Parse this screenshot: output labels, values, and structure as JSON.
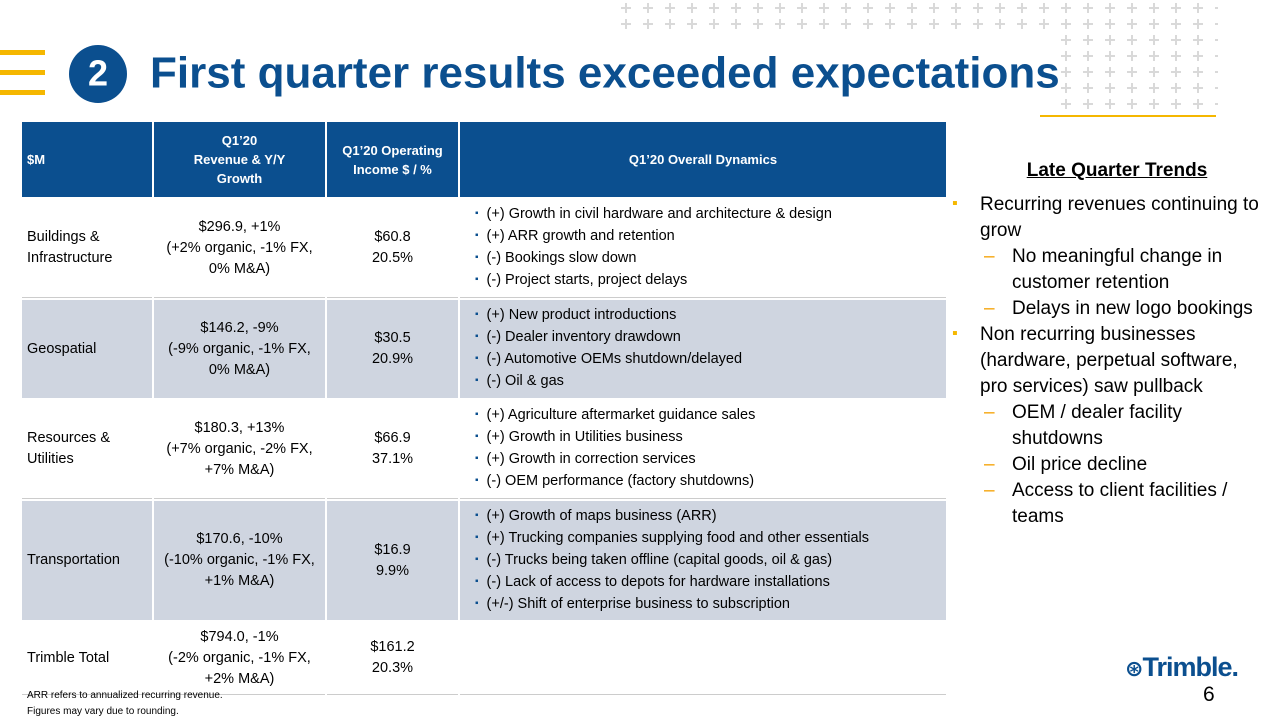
{
  "header": {
    "number": "2",
    "title": "First quarter results exceeded expectations"
  },
  "table": {
    "columns": [
      "$M",
      "Q1’20\nRevenue & Y/Y\nGrowth",
      "Q1’20 Operating\nIncome $ / %",
      "Q1’20  Overall  Dynamics"
    ],
    "rows": [
      {
        "segment": "Buildings &\nInfrastructure",
        "revenue": "$296.9, +1%\n(+2% organic, -1% FX,\n0% M&A)",
        "income": "$60.8\n20.5%",
        "dynamics": [
          "(+) Growth in civil hardware and architecture & design",
          "(+) ARR growth and retention",
          "(-) Bookings slow down",
          "(-) Project starts, project delays"
        ]
      },
      {
        "segment": "Geospatial",
        "revenue": "$146.2, -9%\n(-9% organic, -1% FX,\n0% M&A)",
        "income": "$30.5\n20.9%",
        "dynamics": [
          "(+) New product introductions",
          "(-) Dealer inventory drawdown",
          "(-) Automotive OEMs shutdown/delayed",
          "(-) Oil & gas"
        ]
      },
      {
        "segment": "Resources &\nUtilities",
        "revenue": "$180.3, +13%\n(+7% organic, -2% FX,\n+7% M&A)",
        "income": "$66.9\n37.1%",
        "dynamics": [
          "(+) Agriculture aftermarket guidance sales",
          "(+) Growth in Utilities business",
          "(+) Growth in correction services",
          "(-) OEM performance (factory shutdowns)"
        ]
      },
      {
        "segment": "Transportation",
        "revenue": "$170.6, -10%\n(-10% organic, -1% FX,\n+1% M&A)",
        "income": "$16.9\n9.9%",
        "dynamics": [
          "(+) Growth of maps business (ARR)",
          "(+) Trucking companies supplying food and other essentials",
          "(-) Trucks being taken offline (capital goods, oil & gas)",
          "(-) Lack of access to depots for hardware installations",
          "(+/-) Shift of enterprise business to subscription"
        ]
      },
      {
        "segment": "Trimble Total",
        "revenue": "$794.0, -1%\n(-2% organic, -1% FX,\n+2% M&A)",
        "income": "$161.2\n20.3%",
        "dynamics": []
      }
    ]
  },
  "side": {
    "title": "Late Quarter Trends",
    "items": [
      {
        "text": "Recurring revenues continuing to grow",
        "subs": [
          "No meaningful change in customer retention",
          "Delays in new logo bookings"
        ]
      },
      {
        "text": "Non recurring businesses (hardware, perpetual software, pro services) saw pullback",
        "subs": [
          "OEM / dealer facility shutdowns",
          "Oil price decline",
          "Access to client facilities / teams"
        ]
      }
    ]
  },
  "footnotes": [
    "ARR refers to annualized recurring revenue.",
    "Figures may vary due to rounding."
  ],
  "page_number": "6",
  "logo": "Trimble."
}
